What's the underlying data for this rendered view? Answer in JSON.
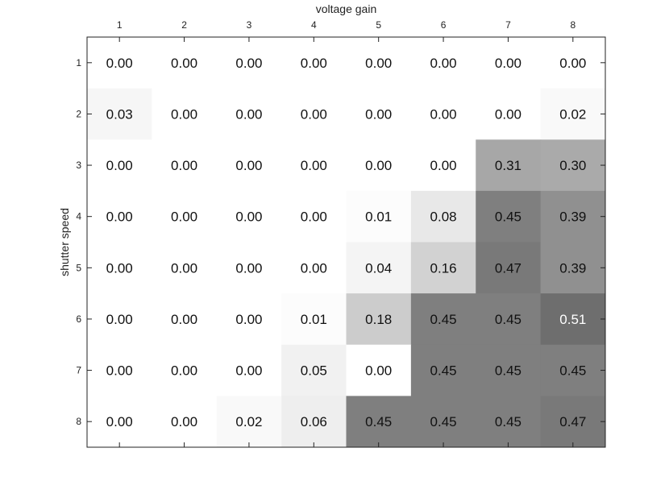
{
  "chart_data": {
    "type": "heatmap",
    "title": "",
    "xlabel": "voltage gain",
    "ylabel": "shutter speed",
    "x_categories": [
      "1",
      "2",
      "3",
      "4",
      "5",
      "6",
      "7",
      "8"
    ],
    "y_categories": [
      "1",
      "2",
      "3",
      "4",
      "5",
      "6",
      "7",
      "8"
    ],
    "x_axis_position": "top",
    "colormap": "white-to-gray",
    "color_low": "#ffffff",
    "color_high": "#6e6e6e",
    "value_range": [
      0,
      0.51
    ],
    "values": [
      [
        0.0,
        0.0,
        0.0,
        0.0,
        0.0,
        0.0,
        0.0,
        0.0
      ],
      [
        0.03,
        0.0,
        0.0,
        0.0,
        0.0,
        0.0,
        0.0,
        0.02
      ],
      [
        0.0,
        0.0,
        0.0,
        0.0,
        0.0,
        0.0,
        0.31,
        0.3
      ],
      [
        0.0,
        0.0,
        0.0,
        0.0,
        0.01,
        0.08,
        0.45,
        0.39
      ],
      [
        0.0,
        0.0,
        0.0,
        0.0,
        0.04,
        0.16,
        0.47,
        0.39
      ],
      [
        0.0,
        0.0,
        0.0,
        0.01,
        0.18,
        0.45,
        0.45,
        0.51
      ],
      [
        0.0,
        0.0,
        0.0,
        0.05,
        0.0,
        0.45,
        0.45,
        0.45
      ],
      [
        0.0,
        0.0,
        0.02,
        0.06,
        0.45,
        0.45,
        0.45,
        0.47
      ]
    ],
    "labels": [
      [
        "0.00",
        "0.00",
        "0.00",
        "0.00",
        "0.00",
        "0.00",
        "0.00",
        "0.00"
      ],
      [
        "0.03",
        "0.00",
        "0.00",
        "0.00",
        "0.00",
        "0.00",
        "0.00",
        "0.02"
      ],
      [
        "0.00",
        "0.00",
        "0.00",
        "0.00",
        "0.00",
        "0.00",
        "0.31",
        "0.30"
      ],
      [
        "0.00",
        "0.00",
        "0.00",
        "0.00",
        "0.01",
        "0.08",
        "0.45",
        "0.39"
      ],
      [
        "0.00",
        "0.00",
        "0.00",
        "0.00",
        "0.04",
        "0.16",
        "0.47",
        "0.39"
      ],
      [
        "0.00",
        "0.00",
        "0.00",
        "0.01",
        "0.18",
        "0.45",
        "0.45",
        "0.51"
      ],
      [
        "0.00",
        "0.00",
        "0.00",
        "0.05",
        "0.00",
        "0.45",
        "0.45",
        "0.45"
      ],
      [
        "0.00",
        "0.00",
        "0.02",
        "0.06",
        "0.45",
        "0.45",
        "0.45",
        "0.47"
      ]
    ],
    "label_color_dark": "#111111",
    "label_color_light": "#ffffff",
    "grid": false
  }
}
